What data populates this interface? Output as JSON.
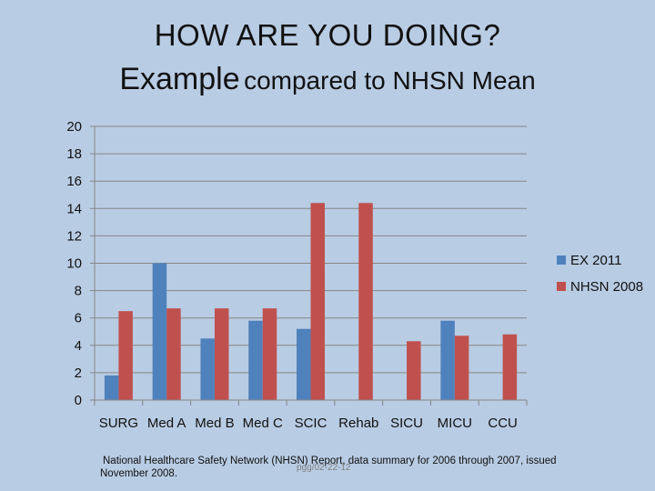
{
  "slide": {
    "title_line1": "HOW ARE YOU DOING?",
    "title_line2_part1": "Example",
    "title_line2_part2": "compared to NHSN Mean",
    "footnote": "National Healthcare Safety Network (NHSN) Report, data summary for 2006 through 2007, issued November 2008.",
    "page_tag": "pgg/02-22-12"
  },
  "colors": {
    "background": "#b8cce4",
    "series1": "#4f81bd",
    "series2": "#c0504d",
    "grid": "#868686"
  },
  "chart_data": {
    "type": "bar",
    "title": "",
    "xlabel": "",
    "ylabel": "",
    "ylim": [
      0,
      20
    ],
    "yticks": [
      0,
      2,
      4,
      6,
      8,
      10,
      12,
      14,
      16,
      18,
      20
    ],
    "grid": true,
    "legend_position": "right",
    "categories": [
      "SURG",
      "Med A",
      "Med B",
      "Med C",
      "SCIC",
      "Rehab",
      "SICU",
      "MICU",
      "CCU"
    ],
    "series": [
      {
        "name": "EX 2011",
        "values": [
          1.8,
          10,
          4.5,
          5.8,
          5.2,
          null,
          null,
          5.8,
          null
        ]
      },
      {
        "name": "NHSN 2008",
        "values": [
          6.5,
          6.7,
          6.7,
          6.7,
          14.4,
          14.4,
          4.3,
          4.7,
          4.8
        ]
      }
    ]
  }
}
